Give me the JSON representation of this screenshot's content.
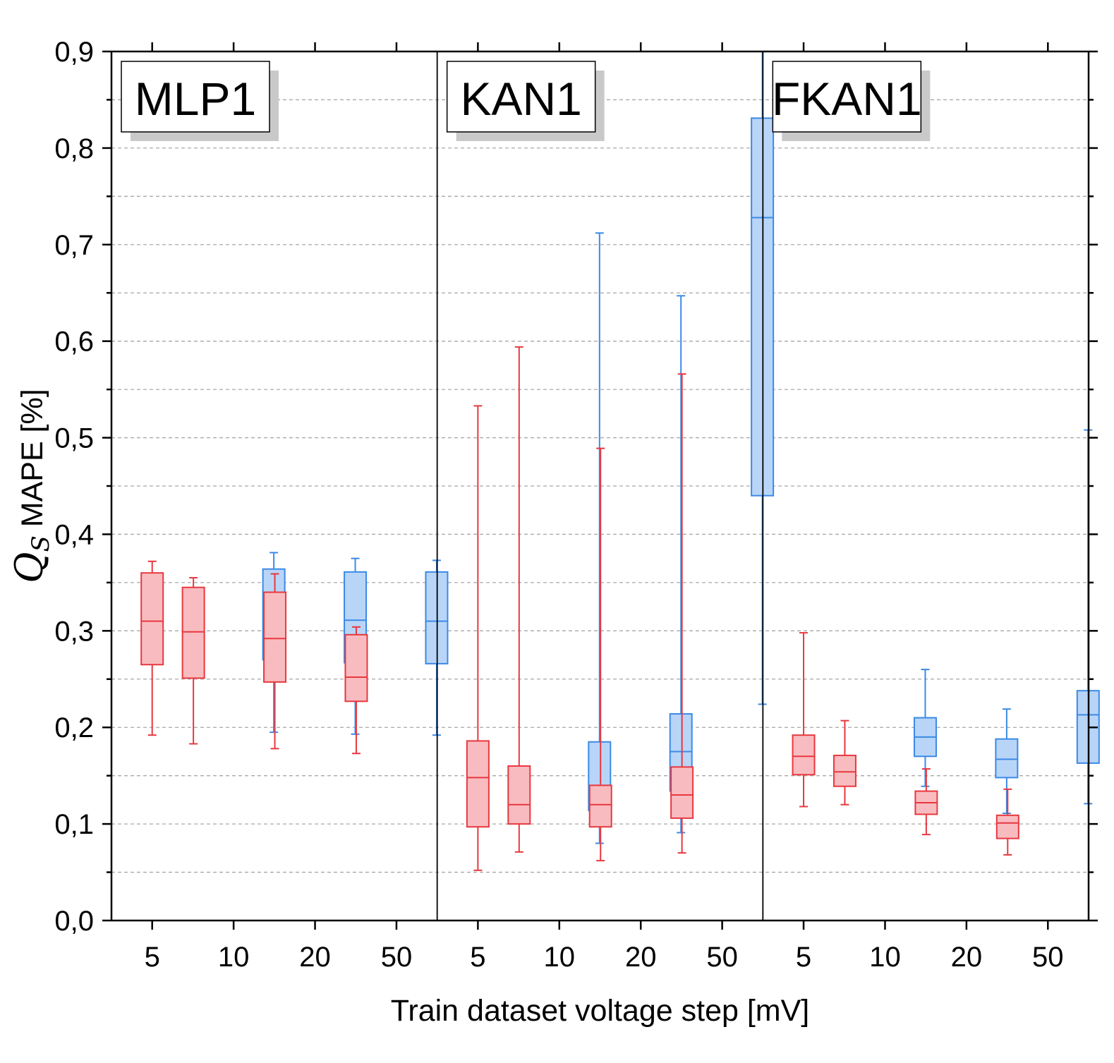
{
  "chart_data": {
    "type": "box",
    "ylabel_symbol": "Q",
    "ylabel_subscript": "S",
    "ylabel_rest": " MAPE [%]",
    "xlabel": "Train dataset voltage step [mV]",
    "ylim": [
      0,
      0.9
    ],
    "yticks": [
      "0,0",
      "0,1",
      "0,2",
      "0,3",
      "0,4",
      "0,5",
      "0,6",
      "0,7",
      "0,8",
      "0,9"
    ],
    "grid": "horizontal dashed",
    "colors": {
      "red_fill": "#f8bcc0",
      "red_stroke": "#e8383f",
      "blue_fill": "#b8d5f8",
      "blue_stroke": "#3b8ae6"
    },
    "categories": [
      "5",
      "10",
      "20",
      "50"
    ],
    "panels": [
      {
        "label": "MLP1",
        "groups": [
          {
            "x": "5",
            "red": {
              "min": 0.192,
              "q1": 0.265,
              "median": 0.31,
              "q3": 0.36,
              "max": 0.372
            },
            "blue": null
          },
          {
            "x": "10",
            "red": {
              "min": 0.183,
              "q1": 0.251,
              "median": 0.299,
              "q3": 0.345,
              "max": 0.355
            },
            "blue": {
              "min": 0.195,
              "q1": 0.27,
              "median": 0.314,
              "q3": 0.364,
              "max": 0.381
            }
          },
          {
            "x": "20",
            "red": {
              "min": 0.178,
              "q1": 0.247,
              "median": 0.292,
              "q3": 0.34,
              "max": 0.359
            },
            "blue": {
              "min": 0.193,
              "q1": 0.267,
              "median": 0.311,
              "q3": 0.361,
              "max": 0.375
            }
          },
          {
            "x": "50",
            "red": {
              "min": 0.173,
              "q1": 0.227,
              "median": 0.252,
              "q3": 0.296,
              "max": 0.304
            },
            "blue": {
              "min": 0.192,
              "q1": 0.266,
              "median": 0.31,
              "q3": 0.361,
              "max": 0.373
            }
          }
        ]
      },
      {
        "label": "KAN1",
        "groups": [
          {
            "x": "5",
            "red": {
              "min": 0.052,
              "q1": 0.097,
              "median": 0.148,
              "q3": 0.186,
              "max": 0.533
            },
            "blue": null
          },
          {
            "x": "10",
            "red": {
              "min": 0.071,
              "q1": 0.1,
              "median": 0.12,
              "q3": 0.16,
              "max": 0.594
            },
            "blue": {
              "min": 0.08,
              "q1": 0.114,
              "median": 0.137,
              "q3": 0.185,
              "max": 0.712
            }
          },
          {
            "x": "20",
            "red": {
              "min": 0.062,
              "q1": 0.097,
              "median": 0.12,
              "q3": 0.14,
              "max": 0.489
            },
            "blue": {
              "min": 0.091,
              "q1": 0.134,
              "median": 0.175,
              "q3": 0.214,
              "max": 0.647
            }
          },
          {
            "x": "50",
            "red": {
              "min": 0.07,
              "q1": 0.106,
              "median": 0.13,
              "q3": 0.159,
              "max": 0.566
            },
            "blue": {
              "min": 0.224,
              "q1": 0.44,
              "median": 0.728,
              "q3": 0.831,
              "max": 0.9
            }
          }
        ]
      },
      {
        "label": "FKAN1",
        "groups": [
          {
            "x": "5",
            "red": {
              "min": 0.118,
              "q1": 0.151,
              "median": 0.17,
              "q3": 0.192,
              "max": 0.298
            },
            "blue": null
          },
          {
            "x": "10",
            "red": {
              "min": 0.12,
              "q1": 0.139,
              "median": 0.154,
              "q3": 0.171,
              "max": 0.207
            },
            "blue": {
              "min": 0.139,
              "q1": 0.17,
              "median": 0.19,
              "q3": 0.21,
              "max": 0.26
            }
          },
          {
            "x": "20",
            "red": {
              "min": 0.089,
              "q1": 0.11,
              "median": 0.122,
              "q3": 0.134,
              "max": 0.157
            },
            "blue": {
              "min": 0.111,
              "q1": 0.148,
              "median": 0.167,
              "q3": 0.188,
              "max": 0.219
            }
          },
          {
            "x": "50",
            "red": {
              "min": 0.068,
              "q1": 0.085,
              "median": 0.101,
              "q3": 0.109,
              "max": 0.136
            },
            "blue": {
              "min": 0.121,
              "q1": 0.163,
              "median": 0.213,
              "q3": 0.238,
              "max": 0.508
            }
          }
        ]
      }
    ]
  }
}
